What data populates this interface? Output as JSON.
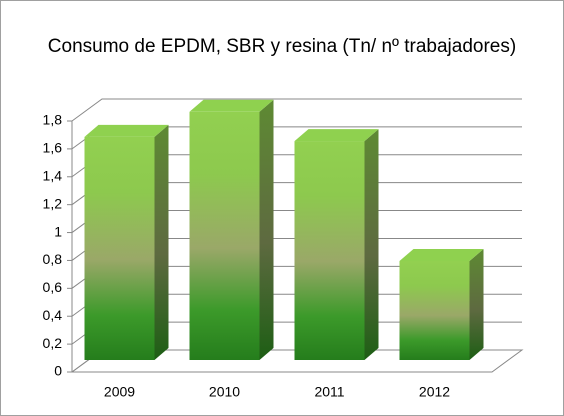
{
  "chart_data": {
    "type": "bar3d",
    "title": "Consumo de EPDM, SBR y resina (Tn/ nº trabajadores)",
    "categories": [
      "2009",
      "2010",
      "2011",
      "2012"
    ],
    "values": [
      1.6,
      1.78,
      1.57,
      0.71
    ],
    "color": "#8fd14f",
    "ylim": [
      0,
      1.8
    ],
    "yticks": [
      0,
      {
        "value": 0.2,
        "label": "0,2"
      },
      {
        "value": 0.4,
        "label": "0,4"
      },
      {
        "value": 0.6,
        "label": "0,6"
      },
      {
        "value": 0.8,
        "label": "0,8"
      },
      1,
      {
        "value": 1.2,
        "label": "1,2"
      },
      {
        "value": 1.4,
        "label": "1,4"
      },
      {
        "value": 1.6,
        "label": "1,6"
      },
      {
        "value": 1.8,
        "label": "1,8"
      }
    ],
    "grid": true
  }
}
